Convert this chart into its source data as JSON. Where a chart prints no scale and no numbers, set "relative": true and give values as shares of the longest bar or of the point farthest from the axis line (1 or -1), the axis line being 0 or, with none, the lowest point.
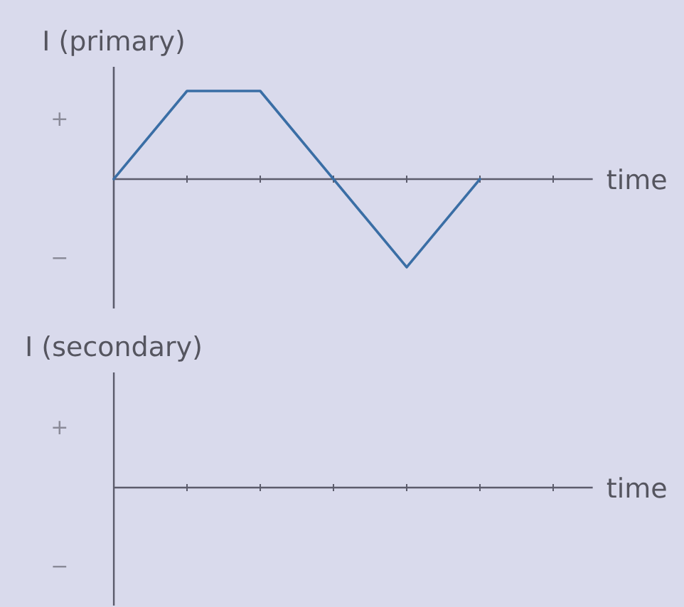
{
  "chart_data": [
    {
      "type": "line",
      "ylabel": "I (primary)",
      "xlabel": "time",
      "categories": [
        null,
        null,
        null,
        null,
        null,
        null,
        null
      ],
      "values": [
        0,
        1,
        1,
        0,
        -1,
        0,
        null
      ],
      "color": "#3a6ea5",
      "relative": true,
      "annotations": [
        "+",
        "−"
      ]
    },
    {
      "type": "other",
      "ylabel": "I (secondary)",
      "xlabel": "time",
      "categories": [
        null,
        null,
        null,
        null,
        null,
        null,
        null
      ],
      "annotations": [
        "+",
        "−"
      ]
    }
  ]
}
